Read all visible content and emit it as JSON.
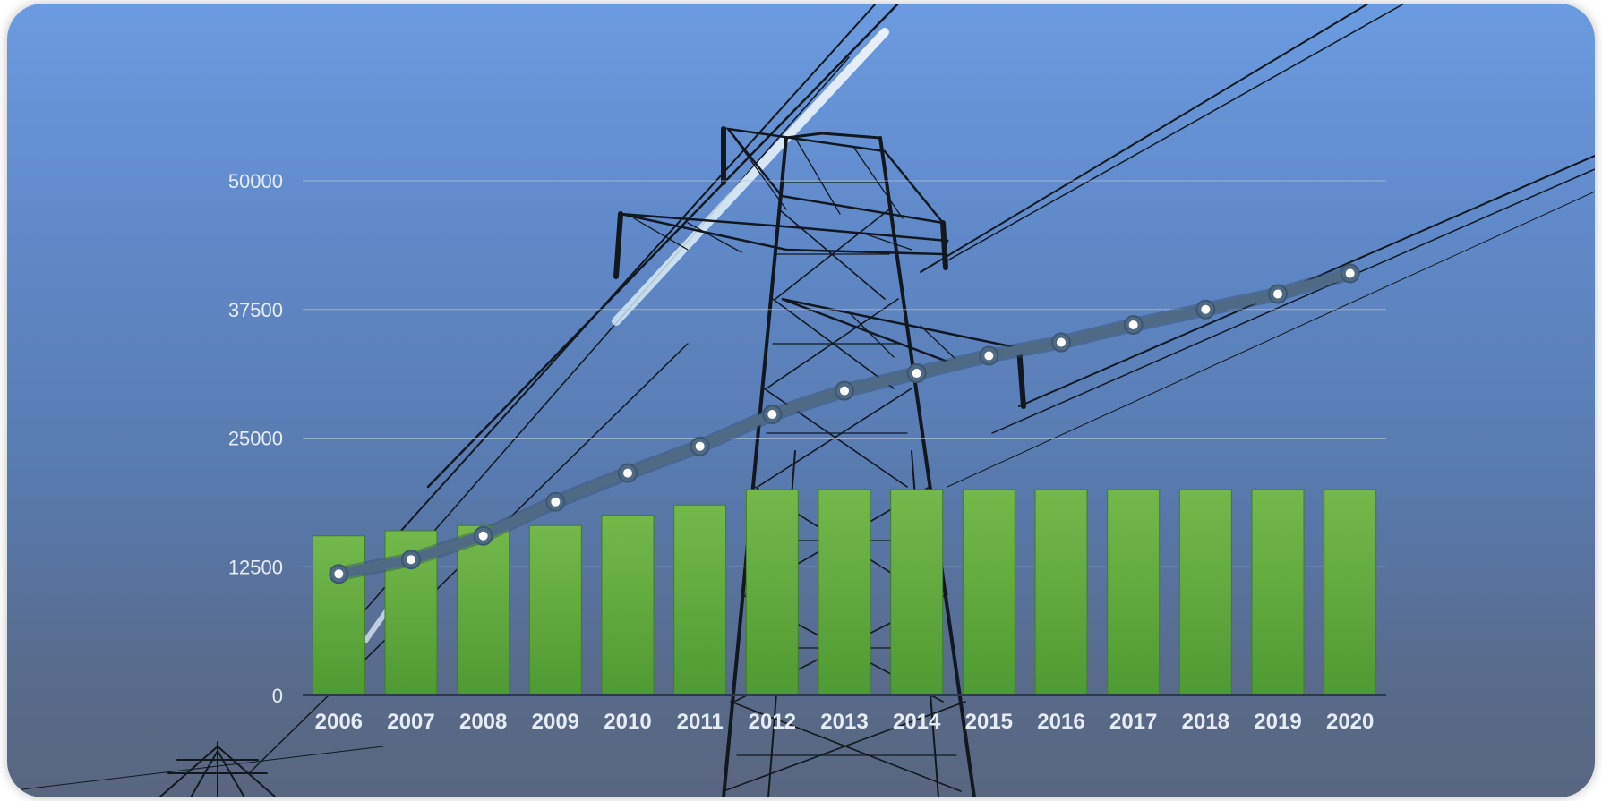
{
  "chart_data": {
    "type": "bar",
    "categories": [
      "2006",
      "2007",
      "2008",
      "2009",
      "2010",
      "2011",
      "2012",
      "2013",
      "2014",
      "2015",
      "2016",
      "2017",
      "2018",
      "2019",
      "2020"
    ],
    "series": [
      {
        "type": "bar",
        "values": [
          15500,
          16000,
          16500,
          16500,
          17500,
          18500,
          20000,
          20000,
          20000,
          20000,
          20000,
          20000,
          20000,
          20000,
          20000
        ]
      },
      {
        "type": "line",
        "values": [
          11800,
          13200,
          15500,
          18800,
          21600,
          24200,
          27300,
          29600,
          31300,
          33000,
          34300,
          36000,
          37500,
          39000,
          41000
        ]
      }
    ],
    "yticks": [
      "0",
      "12500",
      "25000",
      "37500",
      "50000"
    ],
    "ylim": [
      0,
      50000
    ],
    "grid": true,
    "title": "",
    "xlabel": "",
    "ylabel": ""
  },
  "colors": {
    "bar_fill_top": "#74b84a",
    "bar_fill_bottom": "#4f9a33",
    "line": "#4e6a84",
    "marker": "#ffffff",
    "grid": "#b6c3d6",
    "tick_text": "#e6ecf4"
  },
  "background_image": "electricity-pylon-with-power-lines"
}
